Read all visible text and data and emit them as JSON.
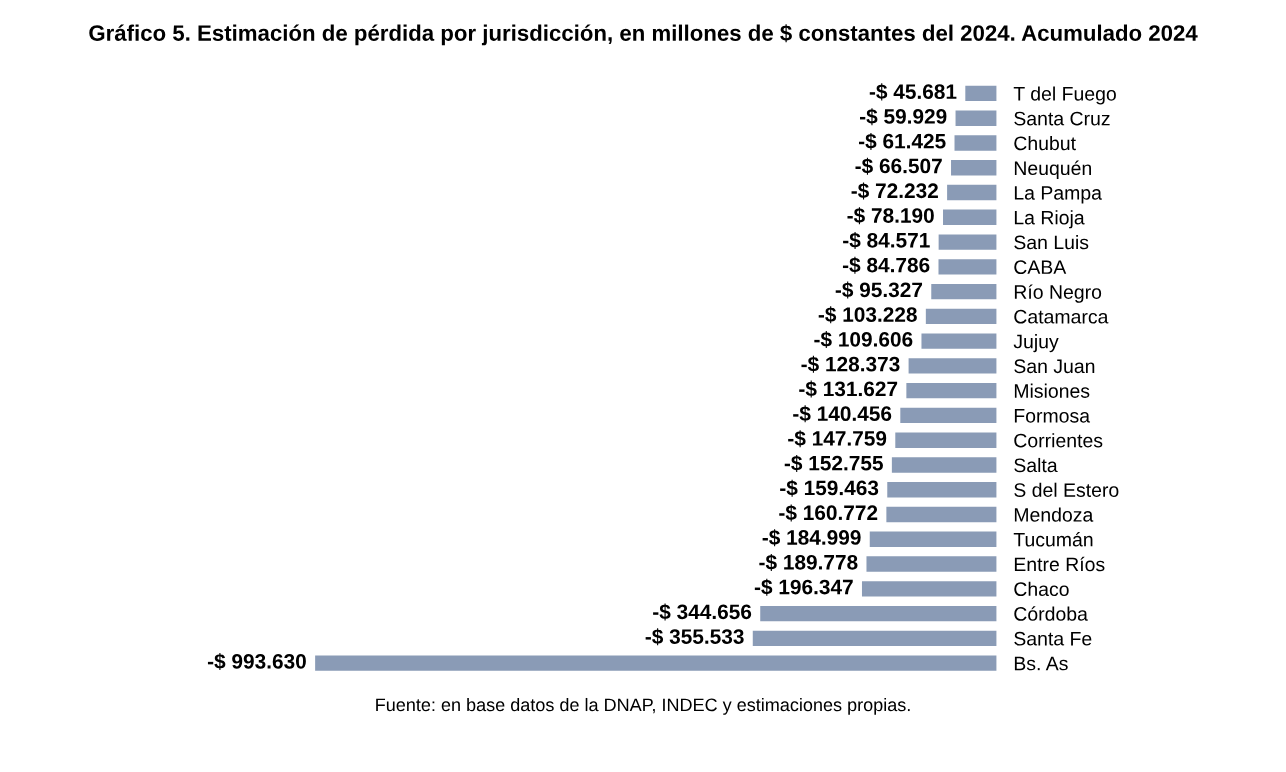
{
  "chart_data": {
    "type": "bar",
    "orientation": "horizontal",
    "title": "Gráfico 5. Estimación de pérdida por jurisdicción, en millones de $ constantes del 2024. Acumulado 2024",
    "categories": [
      "T del Fuego",
      "Santa Cruz",
      "Chubut",
      "Neuquén",
      "La Pampa",
      "La Rioja",
      "San Luis",
      "CABA",
      "Río Negro",
      "Catamarca",
      "Jujuy",
      "San Juan",
      "Misiones",
      "Formosa",
      "Corrientes",
      "Salta",
      "S del Estero",
      "Mendoza",
      "Tucumán",
      "Entre Ríos",
      "Chaco",
      "Córdoba",
      "Santa Fe",
      "Bs. As"
    ],
    "values": [
      -45681,
      -59929,
      -61425,
      -66507,
      -72232,
      -78190,
      -84571,
      -84786,
      -95327,
      -103228,
      -109606,
      -128373,
      -131627,
      -140456,
      -147759,
      -152755,
      -159463,
      -160772,
      -184999,
      -189778,
      -196347,
      -344656,
      -355533,
      -993630
    ],
    "value_labels": [
      "-$ 45.681",
      "-$ 59.929",
      "-$ 61.425",
      "-$ 66.507",
      "-$ 72.232",
      "-$ 78.190",
      "-$ 84.571",
      "-$ 84.786",
      "-$ 95.327",
      "-$ 103.228",
      "-$ 109.606",
      "-$ 128.373",
      "-$ 131.627",
      "-$ 140.456",
      "-$ 147.759",
      "-$ 152.755",
      "-$ 159.463",
      "-$ 160.772",
      "-$ 184.999",
      "-$ 189.778",
      "-$ 196.347",
      "-$ 344.656",
      "-$ 355.533",
      "-$ 993.630"
    ],
    "color": "#8a9bb6",
    "annotations": [
      "Fuente: en base datos de la DNAP, INDEC y estimaciones propias."
    ]
  }
}
